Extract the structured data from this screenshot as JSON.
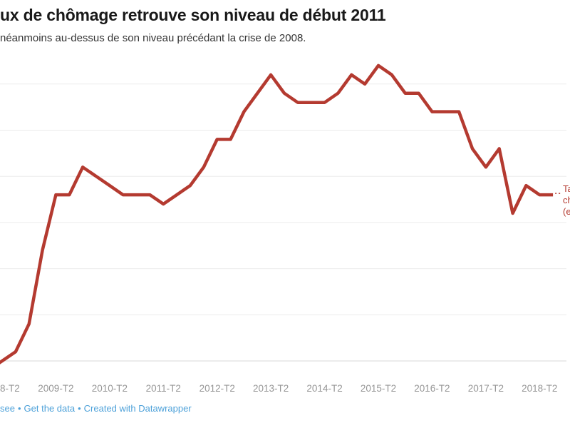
{
  "header": {
    "title": "ux de chômage retrouve son niveau de début 2011",
    "subtitle": "néanmoins au-dessus de son niveau précédant la crise de 2008."
  },
  "footer": {
    "source_remnant": "see",
    "separator": "•",
    "links": [
      "Get the data",
      "Created with Datawrapper"
    ]
  },
  "series_label": {
    "lines": [
      "Taux de",
      "chômage",
      "(en %)"
    ]
  },
  "x_axis": {
    "tick_labels": [
      "8-T2",
      "2009-T2",
      "2010-T2",
      "2011-T2",
      "2012-T2",
      "2013-T2",
      "2014-T2",
      "2015-T2",
      "2016-T2",
      "2017-T2",
      "2018-T2"
    ]
  },
  "colors": {
    "line": "#b43a30",
    "grid": "#ececec",
    "baseline": "#d8d8d8",
    "axis_text": "#969696",
    "footer_link": "#4da1d9",
    "title_text": "#191919",
    "subtitle_text": "#333333"
  },
  "chart_data": {
    "type": "line",
    "title": "ux de chômage retrouve son niveau de début 2011",
    "subtitle": "néanmoins au-dessus de son niveau précédant la crise de 2008.",
    "xlabel": "",
    "ylabel": "Taux de chômage (en %)",
    "ylim": [
      6.95,
      10.3
    ],
    "grid": true,
    "gridline_values": [
      7.0,
      7.5,
      8.0,
      8.5,
      9.0,
      9.5,
      10.0
    ],
    "legend_position": "direct-label-right",
    "categories": [
      "2008-T2",
      "2008-T3",
      "2008-T4",
      "2009-T1",
      "2009-T2",
      "2009-T3",
      "2009-T4",
      "2010-T1",
      "2010-T2",
      "2010-T3",
      "2010-T4",
      "2011-T1",
      "2011-T2",
      "2011-T3",
      "2011-T4",
      "2012-T1",
      "2012-T2",
      "2012-T3",
      "2012-T4",
      "2013-T1",
      "2013-T2",
      "2013-T3",
      "2013-T4",
      "2014-T1",
      "2014-T2",
      "2014-T3",
      "2014-T4",
      "2015-T1",
      "2015-T2",
      "2015-T3",
      "2015-T4",
      "2016-T1",
      "2016-T2",
      "2016-T3",
      "2016-T4",
      "2017-T1",
      "2017-T2",
      "2017-T3",
      "2017-T4",
      "2018-T1",
      "2018-T2",
      "2018-T3"
    ],
    "values": [
      7.0,
      7.1,
      7.4,
      8.2,
      8.8,
      8.8,
      9.1,
      9.0,
      8.9,
      8.8,
      8.8,
      8.8,
      8.7,
      8.8,
      8.9,
      9.1,
      9.4,
      9.4,
      9.7,
      9.9,
      10.1,
      9.9,
      9.8,
      9.8,
      9.8,
      9.9,
      10.1,
      10.0,
      10.2,
      10.1,
      9.9,
      9.9,
      9.7,
      9.7,
      9.7,
      9.3,
      9.1,
      9.3,
      8.6,
      8.9,
      8.8,
      8.8
    ]
  }
}
